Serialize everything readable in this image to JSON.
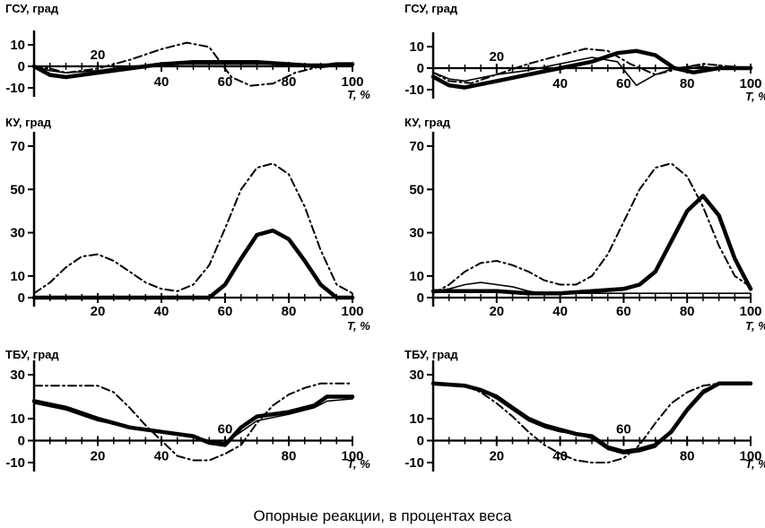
{
  "caption": "Опорные реакции, в процентах веса",
  "chart_data": [
    {
      "type": "line",
      "ylabel": "ГСУ, град",
      "xlabel": "T, %",
      "xlim": [
        0,
        100
      ],
      "ylim": [
        -10,
        10
      ],
      "yticks": [
        -10,
        0,
        10
      ],
      "xticks": [
        20,
        40,
        60,
        80,
        100
      ],
      "series": [
        {
          "style": "thick",
          "x": [
            0,
            5,
            10,
            20,
            30,
            40,
            50,
            60,
            70,
            80,
            90,
            95,
            100
          ],
          "y": [
            0,
            -4,
            -5,
            -3,
            -1,
            1,
            2,
            2,
            2,
            1,
            0,
            1,
            1
          ]
        },
        {
          "style": "thin",
          "x": [
            0,
            5,
            10,
            20,
            30,
            40,
            50,
            60,
            70,
            80,
            90,
            95,
            100
          ],
          "y": [
            0,
            -2,
            -3,
            -2,
            0,
            1,
            1,
            1,
            1,
            1,
            1,
            1,
            1
          ]
        },
        {
          "style": "dashed",
          "x": [
            0,
            5,
            10,
            20,
            30,
            40,
            48,
            55,
            62,
            68,
            75,
            82,
            90,
            95,
            100
          ],
          "y": [
            0,
            -1,
            -3,
            -1,
            3,
            8,
            11,
            9,
            -5,
            -9,
            -8,
            -3,
            0,
            1,
            1
          ]
        }
      ]
    },
    {
      "type": "line",
      "ylabel": "ГСУ, град",
      "xlabel": "T, %",
      "xlim": [
        0,
        100
      ],
      "ylim": [
        -10,
        10
      ],
      "yticks": [
        -10,
        0,
        10
      ],
      "xticks": [
        20,
        40,
        60,
        80,
        100
      ],
      "series": [
        {
          "style": "thick",
          "x": [
            0,
            5,
            10,
            20,
            30,
            40,
            50,
            58,
            64,
            70,
            76,
            82,
            90,
            100
          ],
          "y": [
            -4,
            -8,
            -9,
            -6,
            -3,
            0,
            3,
            7,
            8,
            6,
            0,
            -2,
            0,
            0
          ]
        },
        {
          "style": "thin",
          "x": [
            0,
            5,
            10,
            20,
            30,
            40,
            50,
            58,
            64,
            70,
            76,
            82,
            90,
            100
          ],
          "y": [
            -2,
            -5,
            -6,
            -3,
            -1,
            2,
            5,
            3,
            -8,
            -3,
            0,
            1,
            0,
            0
          ]
        },
        {
          "style": "dashed",
          "x": [
            0,
            5,
            12,
            20,
            30,
            40,
            48,
            55,
            62,
            70,
            78,
            85,
            92,
            100
          ],
          "y": [
            -2,
            -6,
            -7,
            -3,
            2,
            6,
            9,
            8,
            2,
            -3,
            0,
            2,
            1,
            0
          ]
        }
      ]
    },
    {
      "type": "line",
      "ylabel": "КУ, град",
      "xlabel": "T, %",
      "xlim": [
        0,
        100
      ],
      "ylim": [
        0,
        70
      ],
      "yticks": [
        0,
        10,
        30,
        50,
        70
      ],
      "xticks": [
        20,
        40,
        60,
        80,
        100
      ],
      "series": [
        {
          "style": "thick",
          "x": [
            0,
            50,
            55,
            60,
            65,
            70,
            75,
            80,
            85,
            90,
            95,
            100
          ],
          "y": [
            0,
            0,
            0,
            6,
            18,
            29,
            31,
            27,
            17,
            6,
            0,
            0
          ]
        },
        {
          "style": "dashed",
          "x": [
            0,
            5,
            10,
            15,
            20,
            25,
            30,
            35,
            40,
            45,
            50,
            55,
            60,
            65,
            70,
            75,
            80,
            85,
            90,
            95,
            100
          ],
          "y": [
            2,
            7,
            14,
            19,
            20,
            17,
            12,
            7,
            4,
            3,
            6,
            15,
            32,
            50,
            60,
            62,
            57,
            42,
            22,
            6,
            2
          ]
        }
      ]
    },
    {
      "type": "line",
      "ylabel": "КУ, град",
      "xlabel": "T, %",
      "xlim": [
        0,
        100
      ],
      "ylim": [
        0,
        70
      ],
      "yticks": [
        0,
        10,
        30,
        50,
        70
      ],
      "xticks": [
        20,
        40,
        60,
        80,
        100
      ],
      "series": [
        {
          "style": "thick",
          "x": [
            0,
            10,
            20,
            30,
            40,
            50,
            60,
            65,
            70,
            75,
            80,
            85,
            90,
            95,
            100
          ],
          "y": [
            3,
            3,
            3,
            2,
            2,
            3,
            4,
            6,
            12,
            26,
            40,
            47,
            38,
            18,
            4
          ]
        },
        {
          "style": "thin",
          "x": [
            0,
            5,
            10,
            15,
            20,
            25,
            30,
            35,
            40,
            100
          ],
          "y": [
            3,
            4,
            6,
            7,
            6,
            5,
            3,
            2,
            2,
            2
          ]
        },
        {
          "style": "dashed",
          "x": [
            0,
            5,
            10,
            15,
            20,
            25,
            30,
            35,
            40,
            45,
            50,
            55,
            60,
            65,
            70,
            75,
            80,
            85,
            90,
            95,
            100
          ],
          "y": [
            2,
            6,
            12,
            16,
            17,
            15,
            12,
            8,
            6,
            6,
            10,
            20,
            35,
            50,
            60,
            62,
            56,
            42,
            24,
            10,
            5
          ]
        }
      ]
    },
    {
      "type": "line",
      "ylabel": "ТБУ, град",
      "xlabel": "T, %",
      "xlim": [
        0,
        100
      ],
      "ylim": [
        -10,
        30
      ],
      "yticks": [
        -10,
        0,
        10,
        30
      ],
      "xticks": [
        20,
        40,
        60,
        80,
        100
      ],
      "series": [
        {
          "style": "thick",
          "x": [
            0,
            10,
            20,
            30,
            40,
            50,
            55,
            60,
            65,
            70,
            80,
            88,
            92,
            100
          ],
          "y": [
            18,
            15,
            10,
            6,
            4,
            2,
            -1,
            -2,
            6,
            11,
            13,
            16,
            20,
            20
          ]
        },
        {
          "style": "thin",
          "x": [
            0,
            10,
            20,
            30,
            40,
            50,
            55,
            60,
            65,
            70,
            80,
            88,
            92,
            100
          ],
          "y": [
            17,
            14,
            9,
            6,
            4,
            2,
            0,
            -1,
            4,
            9,
            12,
            15,
            18,
            19
          ]
        },
        {
          "style": "dashed",
          "x": [
            0,
            10,
            20,
            25,
            30,
            35,
            40,
            45,
            50,
            55,
            60,
            65,
            70,
            75,
            80,
            85,
            90,
            95,
            100
          ],
          "y": [
            25,
            25,
            25,
            22,
            15,
            7,
            0,
            -7,
            -9,
            -9,
            -6,
            -2,
            8,
            16,
            21,
            24,
            26,
            26,
            26
          ]
        }
      ]
    },
    {
      "type": "line",
      "ylabel": "ТБУ, град",
      "xlabel": "T, %",
      "xlim": [
        0,
        100
      ],
      "ylim": [
        -10,
        30
      ],
      "yticks": [
        -10,
        0,
        10,
        30
      ],
      "xticks": [
        20,
        40,
        60,
        80,
        100
      ],
      "series": [
        {
          "style": "thick",
          "x": [
            0,
            10,
            15,
            20,
            25,
            30,
            35,
            40,
            45,
            50,
            55,
            60,
            65,
            70,
            75,
            80,
            85,
            90,
            100
          ],
          "y": [
            26,
            25,
            23,
            20,
            15,
            10,
            7,
            5,
            3,
            2,
            -3,
            -5,
            -4,
            -2,
            4,
            14,
            22,
            26,
            26
          ]
        },
        {
          "style": "thin",
          "x": [
            0,
            10,
            15,
            20,
            25,
            30,
            35,
            40,
            45,
            50,
            55,
            60,
            65,
            70,
            75,
            80,
            85,
            90,
            100
          ],
          "y": [
            26,
            25,
            23,
            19,
            14,
            9,
            6,
            4,
            3,
            1,
            -4,
            -6,
            -5,
            -3,
            5,
            15,
            23,
            26,
            26
          ]
        },
        {
          "style": "dashed",
          "x": [
            0,
            10,
            15,
            20,
            25,
            30,
            35,
            40,
            45,
            50,
            55,
            60,
            65,
            70,
            75,
            80,
            85,
            90,
            100
          ],
          "y": [
            26,
            25,
            22,
            17,
            11,
            4,
            -2,
            -6,
            -9,
            -10,
            -10,
            -8,
            -2,
            8,
            17,
            22,
            25,
            26,
            26
          ]
        }
      ]
    }
  ]
}
